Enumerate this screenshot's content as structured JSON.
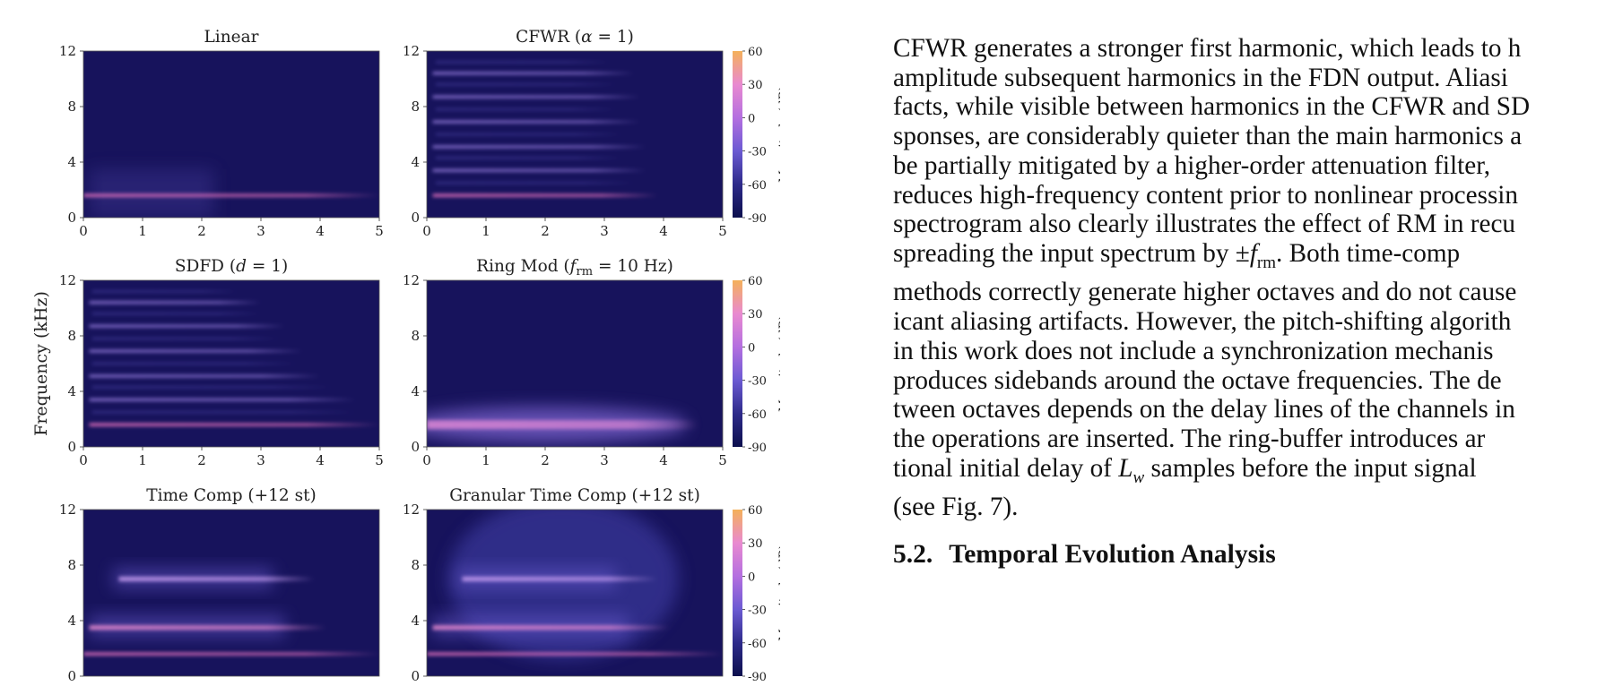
{
  "figure": {
    "y_axis_label": "Frequency (kHz)",
    "colorbar_label": "Magnitude (dB)",
    "colorbar_ticks": [
      "60",
      "30",
      "0",
      "-30",
      "-60",
      "-90"
    ],
    "colorbar_colors": [
      "#f4b15a",
      "#e98ad0",
      "#b46fe0",
      "#6b5ad2",
      "#2d2a8a",
      "#0c0f4d"
    ],
    "x_ticks": [
      "0",
      "1",
      "2",
      "3",
      "4",
      "5"
    ],
    "y_ticks": [
      "12",
      "8",
      "4",
      "0"
    ],
    "panels": [
      {
        "title_pre": "Linear",
        "title_it": "",
        "title_sub": "",
        "title_post": ""
      },
      {
        "title_pre": "CFWR (",
        "title_it": "α",
        "title_sub": "",
        "title_post": " = 1)"
      },
      {
        "title_pre": "SDFD (",
        "title_it": "d",
        "title_sub": "",
        "title_post": " = 1)"
      },
      {
        "title_pre": "Ring Mod (",
        "title_it": "f",
        "title_sub": "rm",
        "title_post": " = 10 Hz)"
      },
      {
        "title_pre": "Time Comp (+12 st)",
        "title_it": "",
        "title_sub": "",
        "title_post": ""
      },
      {
        "title_pre": "Granular Time Comp (+12 st)",
        "title_it": "",
        "title_sub": "",
        "title_post": ""
      }
    ]
  },
  "text": {
    "lines": [
      "CFWR generates a stronger first harmonic, which leads to h",
      "amplitude subsequent harmonics in the FDN output. Aliasi",
      "facts, while visible between harmonics in the CFWR and SD",
      "sponses, are considerably quieter than the main harmonics a",
      "be partially mitigated by a higher-order attenuation filter,",
      "reduces high-frequency content prior to nonlinear processin",
      "spectrogram also clearly illustrates the effect of RM in recu"
    ],
    "line8_pre": "spreading the input spectrum by ±",
    "line8_it": "f",
    "line8_sub": "rm",
    "line8_post": ".  Both time-comp",
    "lines_b": [
      "methods correctly generate higher octaves and do not cause",
      "icant aliasing artifacts. However, the pitch-shifting algorith",
      "in this work does not include a synchronization mechanis",
      "produces sidebands around the octave frequencies. The de",
      "tween octaves depends on the delay lines of the channels in",
      "the operations are inserted.  The ring-buffer introduces ar"
    ],
    "line15_pre": "tional initial delay of ",
    "line15_it": "L",
    "line15_sub": "w",
    "line15_post": " samples before the input signal",
    "line16": "(see Fig. 7).",
    "heading_num": "5.2.",
    "heading_text": "Temporal Evolution Analysis"
  }
}
